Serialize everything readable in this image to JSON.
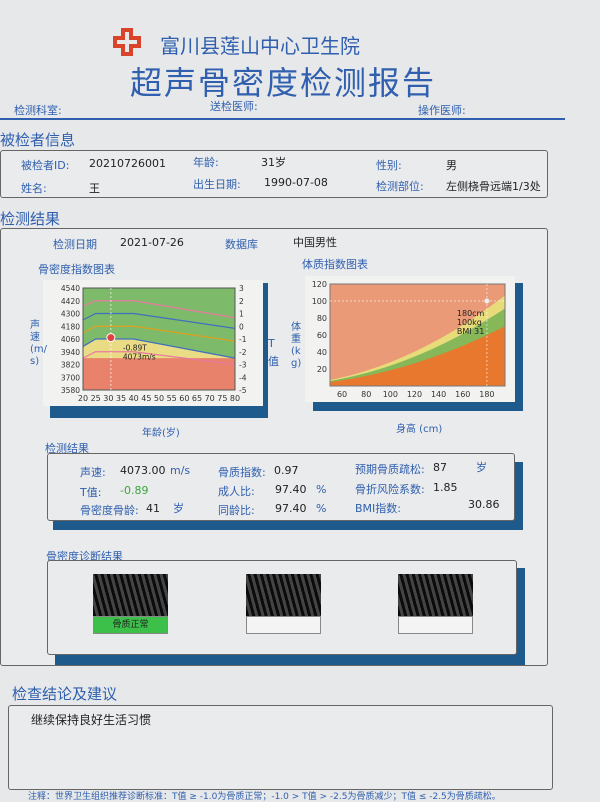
{
  "header": {
    "hospital": "富川县莲山中心卫生院",
    "title": "超声骨密度检测报告",
    "dept_label": "检测科室:",
    "sender_label": "送检医师:",
    "operator_label": "操作医师:",
    "accent": "#2f5fae",
    "logo_color": "#d9442b"
  },
  "patient": {
    "section": "被检者信息",
    "id_label": "被检者ID:",
    "id": "20210726001",
    "age_label": "年龄:",
    "age": "31岁",
    "sex_label": "性别:",
    "sex": "男",
    "name_label": "姓名:",
    "name": "王",
    "dob_label": "出生日期:",
    "dob": "1990-07-08",
    "site_label": "检测部位:",
    "site": "左侧桡骨远端1/3处"
  },
  "results": {
    "section": "检测结果",
    "date_label": "检测日期",
    "date": "2021-07-26",
    "db_label": "数据库",
    "db": "中国男性"
  },
  "chart_data": [
    {
      "type": "area",
      "title": "骨密度指数图表",
      "xlabel": "年龄(岁)",
      "ylabel": "声速(m/s)",
      "y2label": "T值",
      "xlim": [
        20,
        80
      ],
      "ylim": [
        3580,
        4540
      ],
      "y2lim": [
        -5,
        3
      ],
      "xticks": [
        20,
        25,
        30,
        35,
        40,
        45,
        50,
        55,
        60,
        65,
        70,
        75,
        80
      ],
      "yticks": [
        3580,
        3700,
        3820,
        3940,
        4060,
        4180,
        4300,
        4420,
        4540
      ],
      "y2ticks": [
        3,
        2,
        1,
        0,
        -1,
        -2,
        -3,
        -4,
        -5
      ],
      "reference_lines": [
        {
          "color": "#e87aa0",
          "points": [
            [
              20,
              4370
            ],
            [
              25,
              4420
            ],
            [
              40,
              4420
            ],
            [
              80,
              4260
            ]
          ]
        },
        {
          "color": "#3f6fc0",
          "points": [
            [
              20,
              4240
            ],
            [
              25,
              4300
            ],
            [
              40,
              4300
            ],
            [
              80,
              4160
            ]
          ]
        },
        {
          "color": "#e0a020",
          "points": [
            [
              20,
              4120
            ],
            [
              25,
              4180
            ],
            [
              40,
              4180
            ],
            [
              80,
              4040
            ]
          ]
        },
        {
          "color": "#3f6fc0",
          "points": [
            [
              20,
              3990
            ],
            [
              25,
              4060
            ],
            [
              40,
              4060
            ],
            [
              80,
              3880
            ]
          ]
        },
        {
          "color": "#e87aa0",
          "points": [
            [
              20,
              3880
            ],
            [
              25,
              3940
            ],
            [
              40,
              3940
            ],
            [
              80,
              3820
            ]
          ]
        }
      ],
      "zones": {
        "green": "#7dbb6a",
        "yellow": "#eadb85",
        "red": "#e8826a",
        "red_top": 3880
      },
      "point": {
        "x": 31,
        "y": 4073,
        "label1": "-0.89T",
        "label2": "4073m/s"
      }
    },
    {
      "type": "area",
      "title": "体质指数图表",
      "xlabel": "身高 (cm)",
      "ylabel": "体重(kg)",
      "xlim": [
        50,
        195
      ],
      "ylim": [
        0,
        120
      ],
      "xticks": [
        60,
        80,
        100,
        120,
        140,
        160,
        180
      ],
      "yticks": [
        20,
        40,
        60,
        80,
        100,
        120
      ],
      "bmi_zones": [
        {
          "max_bmi": 18.5,
          "color": "#e8782e"
        },
        {
          "max_bmi": 24,
          "color": "#86b85a"
        },
        {
          "max_bmi": 28,
          "color": "#e8dc7a"
        },
        {
          "max_bmi": 999,
          "color": "#eb9a78"
        }
      ],
      "point": {
        "x": 180,
        "y": 100,
        "label1": "180cm",
        "label2": "100kg",
        "label3": "BMI 31"
      }
    }
  ],
  "metrics": {
    "section": "检测结果",
    "sos_label": "声速:",
    "sos": "4073.00",
    "sos_unit": "m/s",
    "t_label": "T值:",
    "t": "-0.89",
    "bone_age_label": "骨密度骨龄:",
    "bone_age": "41",
    "bone_age_unit": "岁",
    "bqi_label": "骨质指数:",
    "bqi": "0.97",
    "adult_label": "成人比:",
    "adult": "97.40",
    "adult_unit": "%",
    "peer_label": "同龄比:",
    "peer": "97.40",
    "peer_unit": "%",
    "osteo_label": "预期骨质疏松:",
    "osteo": "87",
    "osteo_unit": "岁",
    "risk_label": "骨折风险系数:",
    "risk": "1.85",
    "bmi_label": "BMI指数:",
    "bmi": "30.86"
  },
  "diagnosis": {
    "section": "骨密度诊断结果",
    "items": [
      {
        "label": "骨质正常",
        "active": true
      },
      {
        "label": "",
        "active": false
      },
      {
        "label": "",
        "active": false
      }
    ],
    "active_color": "#3cc04a"
  },
  "conclusion": {
    "section": "检查结论及建议",
    "text": "继续保持良好生活习惯"
  },
  "footer": {
    "note": "注释：世界卫生组织推荐诊断标准：T值 ≥ -1.0为骨质正常；-1.0 > T值 > -2.5为骨质减少；T值 ≤ -2.5为骨质疏松。"
  }
}
